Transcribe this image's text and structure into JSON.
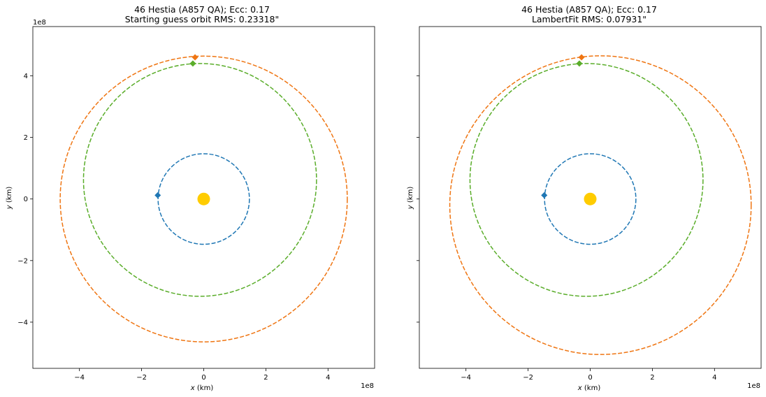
{
  "chart_data": [
    {
      "type": "line",
      "title": "46 Hestia (A857 QA); Ecc: 0.17",
      "subtitle": "Starting guess orbit RMS: 0.23318\"",
      "xlabel_var": "x",
      "xlabel_unit": " (km)",
      "ylabel_var": "y",
      "ylabel_unit": " (km)",
      "offset_x": "1e8",
      "offset_y": "1e8",
      "xlim": [
        -5.5,
        5.5
      ],
      "ylim": [
        -5.5,
        5.6
      ],
      "xticks": [
        -4,
        -2,
        0,
        2,
        4
      ],
      "yticks": [
        -4,
        -2,
        0,
        2,
        4
      ],
      "xtick_labels": [
        "−4",
        "−2",
        "0",
        "2",
        "4"
      ],
      "ytick_labels": [
        "−4",
        "−2",
        "0",
        "2",
        "4"
      ],
      "show_ytick_labels": true,
      "sun": {
        "x": 0,
        "y": 0,
        "color": "#FFCC00"
      },
      "orbits": [
        {
          "color": "#1f77b4",
          "cx": 0,
          "cy": 0,
          "rx": 1.47,
          "ry": 1.47,
          "marker": {
            "x": -1.48,
            "y": 0.12
          }
        },
        {
          "color": "#5aad2a",
          "cx": -0.12,
          "cy": 0.62,
          "rx": 3.75,
          "ry": 3.78,
          "marker": {
            "x": -0.35,
            "y": 4.4
          }
        },
        {
          "color": "#ef7512",
          "cx": 0.0,
          "cy": 0.0,
          "rx": 4.62,
          "ry": 4.64,
          "marker": {
            "x": -0.28,
            "y": 4.6
          }
        }
      ]
    },
    {
      "type": "line",
      "title": "46 Hestia (A857 QA); Ecc: 0.17",
      "subtitle": "LambertFit RMS: 0.07931\"",
      "xlabel_var": "x",
      "xlabel_unit": " (km)",
      "ylabel_var": "y",
      "ylabel_unit": " (km)",
      "offset_x": "1e8",
      "offset_y": "",
      "xlim": [
        -5.5,
        5.5
      ],
      "ylim": [
        -5.5,
        5.6
      ],
      "xticks": [
        -4,
        -2,
        0,
        2,
        4
      ],
      "yticks": [
        -4,
        -2,
        0,
        2,
        4
      ],
      "xtick_labels": [
        "−4",
        "−2",
        "0",
        "2",
        "4"
      ],
      "ytick_labels": [
        "",
        "",
        "",
        "",
        ""
      ],
      "show_ytick_labels": false,
      "sun": {
        "x": 0,
        "y": 0,
        "color": "#FFCC00"
      },
      "orbits": [
        {
          "color": "#1f77b4",
          "cx": 0,
          "cy": 0,
          "rx": 1.47,
          "ry": 1.47,
          "marker": {
            "x": -1.48,
            "y": 0.12
          }
        },
        {
          "color": "#5aad2a",
          "cx": -0.12,
          "cy": 0.62,
          "rx": 3.75,
          "ry": 3.78,
          "marker": {
            "x": -0.35,
            "y": 4.4
          }
        },
        {
          "color": "#ef7512",
          "cx": 0.33,
          "cy": -0.2,
          "rx": 4.85,
          "ry": 4.85,
          "marker": {
            "x": -0.28,
            "y": 4.6
          }
        }
      ]
    }
  ]
}
